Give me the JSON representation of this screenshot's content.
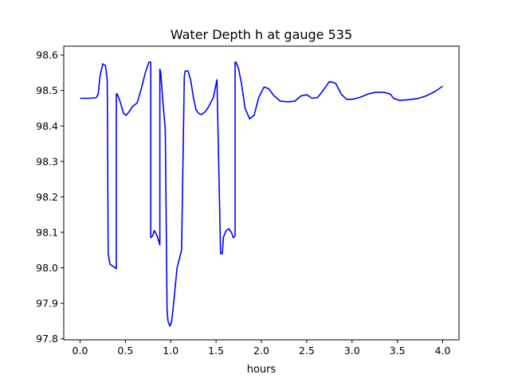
{
  "chart_data": {
    "type": "line",
    "title": "Water Depth h at gauge 535",
    "xlabel": "hours",
    "ylabel": "",
    "xlim": [
      -0.18,
      4.18
    ],
    "ylim": [
      97.797,
      98.625
    ],
    "xticks": [
      0.0,
      0.5,
      1.0,
      1.5,
      2.0,
      2.5,
      3.0,
      3.5,
      4.0
    ],
    "xtick_labels": [
      "0.0",
      "0.5",
      "1.0",
      "1.5",
      "2.0",
      "2.5",
      "3.0",
      "3.5",
      "4.0"
    ],
    "yticks": [
      97.8,
      97.9,
      98.0,
      98.1,
      98.2,
      98.3,
      98.4,
      98.5,
      98.6
    ],
    "ytick_labels": [
      "97.8",
      "97.9",
      "98.0",
      "98.1",
      "98.2",
      "98.3",
      "98.4",
      "98.5",
      "98.6"
    ],
    "grid": false,
    "legend": "none",
    "series": [
      {
        "color": "#0000ff",
        "x": [
          0.0,
          0.1,
          0.18,
          0.2,
          0.22,
          0.25,
          0.28,
          0.3,
          0.31,
          0.31,
          0.33,
          0.36,
          0.4,
          0.4,
          0.41,
          0.44,
          0.48,
          0.51,
          0.54,
          0.58,
          0.63,
          0.67,
          0.72,
          0.76,
          0.78,
          0.78,
          0.8,
          0.82,
          0.85,
          0.88,
          0.88,
          0.89,
          0.91,
          0.94,
          0.96,
          0.96,
          0.97,
          0.99,
          1.0,
          1.01,
          1.02,
          1.04,
          1.07,
          1.1,
          1.12,
          1.15,
          1.15,
          1.16,
          1.19,
          1.22,
          1.25,
          1.28,
          1.31,
          1.34,
          1.38,
          1.42,
          1.47,
          1.51,
          1.55,
          1.57,
          1.58,
          1.58,
          1.61,
          1.64,
          1.67,
          1.69,
          1.71,
          1.71,
          1.72,
          1.75,
          1.78,
          1.82,
          1.87,
          1.92,
          1.97,
          2.03,
          2.08,
          2.14,
          2.21,
          2.29,
          2.37,
          2.44,
          2.5,
          2.56,
          2.62,
          2.68,
          2.75,
          2.82,
          2.88,
          2.94,
          3.0,
          3.08,
          3.18,
          3.26,
          3.35,
          3.42,
          3.46,
          3.52,
          3.62,
          3.72,
          3.82,
          3.92,
          4.0
        ],
        "y": [
          98.478,
          98.478,
          98.48,
          98.49,
          98.54,
          98.575,
          98.57,
          98.53,
          98.04,
          98.04,
          98.01,
          98.005,
          97.998,
          98.49,
          98.49,
          98.47,
          98.435,
          98.43,
          98.44,
          98.455,
          98.465,
          98.5,
          98.55,
          98.58,
          98.58,
          98.085,
          98.09,
          98.105,
          98.09,
          98.065,
          98.56,
          98.55,
          98.48,
          98.39,
          97.88,
          97.88,
          97.85,
          97.836,
          97.84,
          97.85,
          97.87,
          97.92,
          98.0,
          98.03,
          98.05,
          98.54,
          98.54,
          98.555,
          98.555,
          98.53,
          98.48,
          98.445,
          98.435,
          98.432,
          98.44,
          98.455,
          98.48,
          98.53,
          98.04,
          98.04,
          98.08,
          98.085,
          98.105,
          98.11,
          98.1,
          98.085,
          98.09,
          98.58,
          98.58,
          98.56,
          98.52,
          98.45,
          98.42,
          98.43,
          98.48,
          98.51,
          98.505,
          98.485,
          98.47,
          98.468,
          98.47,
          98.485,
          98.488,
          98.478,
          98.48,
          98.5,
          98.525,
          98.52,
          98.49,
          98.475,
          98.475,
          98.48,
          98.49,
          98.495,
          98.495,
          98.49,
          98.478,
          98.472,
          98.474,
          98.477,
          98.485,
          98.498,
          98.512
        ]
      }
    ]
  }
}
